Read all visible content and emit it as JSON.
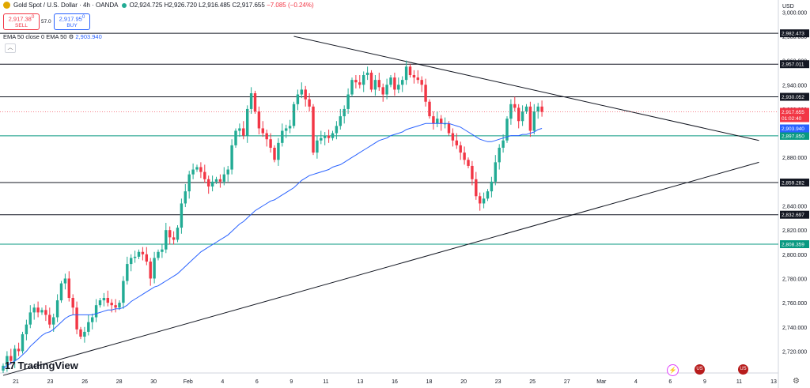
{
  "header": {
    "title": "Gold Spot / U.S. Dollar · 4h · OANDA",
    "ohlc": {
      "o_label": "O",
      "o": "2,924.725",
      "h_label": "H",
      "h": "2,926.720",
      "l_label": "L",
      "l": "2,916.485",
      "c_label": "C",
      "c": "2,917.655",
      "change": "−7.085 (−0.24%)"
    }
  },
  "trade": {
    "sell_price": "2,917.38",
    "sell_sup": "0",
    "sell_label": "SELL",
    "spread": "57.0",
    "buy_price": "2,917.95",
    "buy_sup": "0",
    "buy_label": "BUY"
  },
  "indicator": {
    "label": "EMA 50 close 0 EMA 50",
    "value": "2,903.940"
  },
  "currency": "USD",
  "brand": {
    "name": "TradingView",
    "mark": "17"
  },
  "events": {
    "flash": "⚡",
    "flag": "US"
  },
  "icons": {
    "logo": "gold-coin-icon",
    "settings": "gear-icon",
    "collapse": "chevron-up-icon"
  },
  "colors": {
    "up": "#22ab94",
    "down": "#f23645",
    "ema": "#2962ff",
    "level": "#131722",
    "green_level": "#089981"
  },
  "chart_data": {
    "type": "candlestick",
    "title": "Gold Spot / U.S. Dollar · 4h · OANDA",
    "ylim": [
      2702,
      3010
    ],
    "y_ticks": [
      2720,
      2740,
      2760,
      2780,
      2800,
      2820,
      2840,
      2860,
      2880,
      2900,
      2920,
      2940,
      2960,
      2980,
      3000
    ],
    "x_ticks": [
      "21",
      "23",
      "26",
      "28",
      "30",
      "Feb",
      "4",
      "6",
      "9",
      "11",
      "13",
      "16",
      "18",
      "20",
      "23",
      "25",
      "27",
      "Mar",
      "4",
      "6",
      "9",
      "11",
      "13"
    ],
    "levels": [
      {
        "value": 2982.473,
        "label": "2,982.473",
        "color": "#131722"
      },
      {
        "value": 2957.011,
        "label": "2,957.011",
        "color": "#131722"
      },
      {
        "value": 2930.052,
        "label": "2,930.052",
        "color": "#131722"
      },
      {
        "value": 2897.85,
        "label": "2,897.850",
        "color": "#089981"
      },
      {
        "value": 2859.282,
        "label": "2,859.282",
        "color": "#131722"
      },
      {
        "value": 2832.697,
        "label": "2,832.697",
        "color": "#131722"
      },
      {
        "value": 2808.359,
        "label": "2,808.359",
        "color": "#089981"
      }
    ],
    "last_price": {
      "value": 2917.655,
      "label": "2,917.655",
      "countdown": "01:02:40"
    },
    "ema_label": {
      "value": 2903.94,
      "label": "2,903.940"
    },
    "trendlines": [
      {
        "name": "descending",
        "from": [
          75,
          2980
        ],
        "to": [
          195,
          2894
        ]
      },
      {
        "name": "ascending",
        "from": [
          0,
          2700
        ],
        "to": [
          195,
          2876
        ]
      }
    ],
    "closes": [
      2708,
      2716,
      2712,
      2722,
      2720,
      2734,
      2742,
      2752,
      2756,
      2752,
      2754,
      2750,
      2742,
      2748,
      2762,
      2776,
      2780,
      2764,
      2756,
      2738,
      2732,
      2736,
      2744,
      2748,
      2758,
      2762,
      2764,
      2760,
      2758,
      2756,
      2760,
      2778,
      2792,
      2797,
      2798,
      2802,
      2800,
      2794,
      2780,
      2797,
      2802,
      2804,
      2820,
      2814,
      2812,
      2822,
      2842,
      2852,
      2866,
      2870,
      2872,
      2868,
      2862,
      2856,
      2860,
      2862,
      2860,
      2866,
      2870,
      2890,
      2902,
      2904,
      2898,
      2920,
      2933,
      2918,
      2904,
      2900,
      2895,
      2888,
      2878,
      2892,
      2902,
      2904,
      2906,
      2924,
      2932,
      2936,
      2928,
      2922,
      2884,
      2894,
      2896,
      2898,
      2896,
      2900,
      2906,
      2914,
      2920,
      2932,
      2944,
      2942,
      2940,
      2948,
      2950,
      2936,
      2944,
      2938,
      2932,
      2940,
      2946,
      2936,
      2940,
      2944,
      2955,
      2948,
      2946,
      2944,
      2940,
      2926,
      2914,
      2908,
      2912,
      2908,
      2908,
      2900,
      2894,
      2890,
      2884,
      2878,
      2873,
      2862,
      2848,
      2842,
      2846,
      2852,
      2860,
      2876,
      2888,
      2894,
      2912,
      2924,
      2921,
      2910,
      2918,
      2922,
      2902,
      2918,
      2922,
      2917.655
    ],
    "ema": [
      2706,
      2708,
      2710,
      2712,
      2714,
      2717,
      2720,
      2724,
      2727,
      2730,
      2733,
      2735,
      2736,
      2738,
      2741,
      2744,
      2747,
      2749,
      2750,
      2750,
      2750,
      2750,
      2750,
      2750,
      2751,
      2752,
      2753,
      2754,
      2754,
      2755,
      2755,
      2756,
      2758,
      2761,
      2763,
      2765,
      2767,
      2769,
      2771,
      2773,
      2774,
      2776,
      2778,
      2780,
      2782,
      2784,
      2787,
      2790,
      2793,
      2796,
      2799,
      2802,
      2804,
      2806,
      2808,
      2810,
      2812,
      2814,
      2816,
      2819,
      2822,
      2825,
      2827,
      2830,
      2833,
      2836,
      2838,
      2840,
      2842,
      2844,
      2845,
      2847,
      2849,
      2851,
      2853,
      2855,
      2858,
      2861,
      2863,
      2865,
      2866,
      2867,
      2868,
      2869,
      2870,
      2872,
      2873,
      2874,
      2876,
      2878,
      2880,
      2882,
      2884,
      2886,
      2888,
      2890,
      2892,
      2894,
      2895,
      2896,
      2898,
      2899,
      2900,
      2901,
      2903,
      2904,
      2905,
      2906,
      2907,
      2908,
      2908,
      2908,
      2908,
      2908,
      2908,
      2908,
      2907,
      2906,
      2905,
      2903,
      2901,
      2899,
      2897,
      2895,
      2894,
      2893,
      2893,
      2894,
      2895,
      2896,
      2897,
      2898,
      2898,
      2898,
      2899,
      2899,
      2900,
      2901,
      2903,
      2903.94
    ]
  }
}
